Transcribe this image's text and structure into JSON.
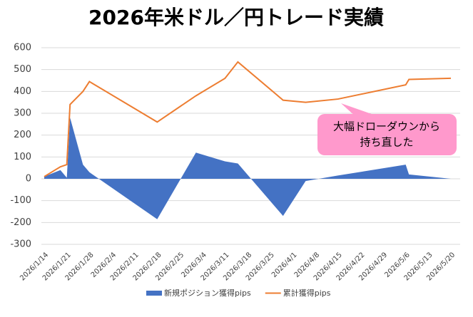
{
  "chart_data": {
    "type": "area-line",
    "title": "2026年米ドル／円トレード実績",
    "x": [
      "2026/1/14",
      "2026/1/19",
      "2026/1/21",
      "2026/1/22",
      "2026/1/26",
      "2026/1/28",
      "2026/2/18",
      "2026/3/2",
      "2026/3/11",
      "2026/3/15",
      "2026/3/29",
      "2026/4/5",
      "2026/4/15",
      "2026/5/6",
      "2026/5/7",
      "2026/5/20"
    ],
    "series": [
      {
        "name": "新規ポジション獲得pips",
        "kind": "area",
        "color": "#4472c4",
        "values": [
          10,
          40,
          5,
          280,
          65,
          30,
          -185,
          120,
          80,
          70,
          -170,
          -10,
          15,
          65,
          20,
          0
        ]
      },
      {
        "name": "累計獲得pips",
        "kind": "line",
        "color": "#ed7d31",
        "values": [
          10,
          55,
          65,
          340,
          400,
          445,
          260,
          380,
          460,
          535,
          360,
          350,
          365,
          430,
          455,
          460
        ]
      }
    ],
    "xlim": [
      "2026/1/14",
      "2026/5/20"
    ],
    "xticks": [
      "2026/1/14",
      "2026/1/21",
      "2026/1/28",
      "2026/2/4",
      "2026/2/11",
      "2026/2/18",
      "2026/2/25",
      "2026/3/4",
      "2026/3/11",
      "2026/3/18",
      "2026/3/25",
      "2026/4/1",
      "2026/4/8",
      "2026/4/15",
      "2026/4/22",
      "2026/4/29",
      "2026/5/6",
      "2026/5/13",
      "2026/5/20"
    ],
    "ylim": [
      -300,
      600
    ],
    "yticks": [
      -300,
      -200,
      -100,
      0,
      100,
      200,
      300,
      400,
      500,
      600
    ],
    "grid": true,
    "legend": "bottom",
    "annotation": [
      "大幅ドローダウンから",
      "持ち直した"
    ],
    "annotation_color": "#ff99cc"
  }
}
